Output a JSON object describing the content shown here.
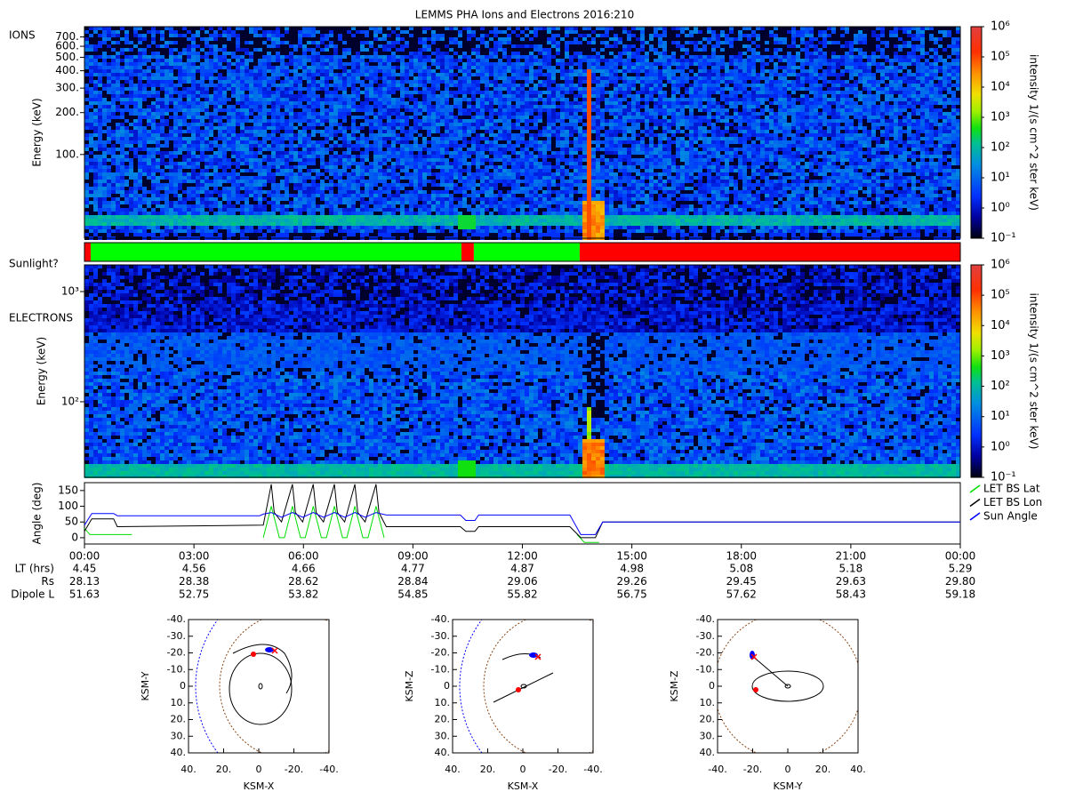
{
  "title": "LEMMS PHA Ions and Electrons  2016:210",
  "chart_data": [
    {
      "type": "spectrogram",
      "label": "IONS",
      "ylabel": "Energy (keV)",
      "xlim": [
        0,
        24
      ],
      "ylim": [
        25,
        830
      ],
      "log": true,
      "yticks": [
        {
          "value": 100,
          "label": "100."
        },
        {
          "value": 200,
          "label": "200."
        },
        {
          "value": 300,
          "label": "300."
        },
        {
          "value": 400,
          "label": "400."
        },
        {
          "value": 500,
          "label": "500."
        },
        {
          "value": 600,
          "label": "600."
        },
        {
          "value": 700,
          "label": "700."
        }
      ],
      "colorbar": {
        "lim": [
          0.1,
          1000000
        ],
        "label": "intensity 1/(s cm^2 ster keV)",
        "ticks": [
          {
            "value": 0.1,
            "label": "10⁻¹"
          },
          {
            "value": 1,
            "label": "10⁰"
          },
          {
            "value": 10,
            "label": "10¹"
          },
          {
            "value": 100,
            "label": "10²"
          },
          {
            "value": 1000,
            "label": "10³"
          },
          {
            "value": 10000,
            "label": "10⁴"
          },
          {
            "value": 100000,
            "label": "10⁵"
          },
          {
            "value": 1000000,
            "label": "10⁶"
          }
        ]
      }
    },
    {
      "type": "timeline",
      "label": "Sunlight?",
      "xlim": [
        0,
        24
      ],
      "segments": [
        {
          "start": 0,
          "end": 0.17,
          "color": "#ff0000"
        },
        {
          "start": 0.17,
          "end": 10.33,
          "color": "#00ff00"
        },
        {
          "start": 10.33,
          "end": 10.67,
          "color": "#ff0000"
        },
        {
          "start": 10.67,
          "end": 13.57,
          "color": "#00ff00"
        },
        {
          "start": 13.57,
          "end": 24,
          "color": "#ff0000"
        }
      ]
    },
    {
      "type": "spectrogram",
      "label": "ELECTRONS",
      "ylabel": "Energy (keV)",
      "xlim": [
        0,
        24
      ],
      "ylim": [
        20.6,
        1746
      ],
      "log": true,
      "yticks": [
        {
          "value": 100,
          "label": "10²"
        },
        {
          "value": 1000,
          "label": "10³"
        }
      ],
      "colorbar": {
        "lim": [
          0.1,
          1000000
        ],
        "label": "intensity 1/(s cm^2 ster keV)",
        "ticks": [
          {
            "value": 0.1,
            "label": "10⁻¹"
          },
          {
            "value": 1,
            "label": "10⁰"
          },
          {
            "value": 10,
            "label": "10¹"
          },
          {
            "value": 100,
            "label": "10²"
          },
          {
            "value": 1000,
            "label": "10³"
          },
          {
            "value": 10000,
            "label": "10⁴"
          },
          {
            "value": 100000,
            "label": "10⁵"
          },
          {
            "value": 1000000,
            "label": "10⁶"
          }
        ]
      }
    },
    {
      "type": "line",
      "ylabel": "Angle (deg)",
      "xlim": [
        0,
        24
      ],
      "ylim": [
        -20,
        175
      ],
      "yticks": [
        0,
        50,
        100,
        150
      ],
      "legend": "right",
      "xticks": [
        {
          "value": 0,
          "label": "00:00"
        },
        {
          "value": 3,
          "label": "03:00"
        },
        {
          "value": 6,
          "label": "06:00"
        },
        {
          "value": 9,
          "label": "09:00"
        },
        {
          "value": 12,
          "label": "12:00"
        },
        {
          "value": 15,
          "label": "15:00"
        },
        {
          "value": 18,
          "label": "18:00"
        },
        {
          "value": 21,
          "label": "21:00"
        },
        {
          "value": 24,
          "label": "00:00"
        }
      ],
      "series": [
        {
          "name": "LET BS Lat",
          "color": "#00dd00",
          "x": [
            0,
            0.15,
            1.3,
            1.31,
            4.9,
            5.12,
            5.34,
            5.48,
            5.7,
            5.92,
            6.05,
            6.27,
            6.49,
            6.63,
            6.85,
            7.07,
            7.19,
            7.41,
            7.63,
            7.77,
            7.99,
            8.21,
            8.22,
            13.5,
            13.7,
            14.1
          ],
          "values": [
            30,
            10,
            10,
            null,
            0,
            100,
            0,
            0,
            100,
            0,
            0,
            100,
            0,
            0,
            100,
            0,
            0,
            100,
            0,
            0,
            100,
            0,
            null,
            10,
            -15,
            -15
          ]
        },
        {
          "name": "LET BS Lon",
          "color": "#000000",
          "x": [
            0,
            0.2,
            0.8,
            0.9,
            4.9,
            5.12,
            5.2,
            5.4,
            5.7,
            5.78,
            5.98,
            6.27,
            6.35,
            6.55,
            6.85,
            6.93,
            7.13,
            7.41,
            7.49,
            7.69,
            7.99,
            8.07,
            8.27,
            10.3,
            10.45,
            10.7,
            10.8,
            13.3,
            13.6,
            14.0,
            14.2,
            24
          ],
          "values": [
            20,
            60,
            60,
            35,
            40,
            170,
            80,
            50,
            170,
            80,
            50,
            170,
            80,
            50,
            170,
            80,
            50,
            170,
            80,
            50,
            170,
            80,
            35,
            35,
            20,
            20,
            35,
            35,
            0,
            0,
            50,
            50
          ]
        },
        {
          "name": "Sun Angle",
          "color": "#0000ff",
          "x": [
            0,
            0.2,
            0.8,
            0.9,
            4.8,
            4.9,
            5.12,
            5.4,
            5.7,
            5.98,
            6.27,
            6.55,
            6.85,
            7.13,
            7.41,
            7.69,
            7.99,
            8.27,
            10.3,
            10.45,
            10.7,
            10.8,
            13.3,
            13.6,
            14.0,
            14.2,
            24
          ],
          "values": [
            40,
            77,
            77,
            70,
            70,
            75,
            80,
            65,
            80,
            65,
            80,
            65,
            80,
            65,
            80,
            65,
            80,
            72,
            72,
            55,
            55,
            72,
            72,
            10,
            10,
            50,
            50
          ]
        }
      ]
    },
    {
      "type": "orbit",
      "xlabel": "KSM-X",
      "ylabel": "KSM-Y",
      "xlim": [
        40,
        -40
      ],
      "ylim": [
        40,
        -40
      ],
      "xticks": [
        {
          "value": 40,
          "label": "40."
        },
        {
          "value": 20,
          "label": "20."
        },
        0,
        {
          "value": -20,
          "label": "-20."
        },
        {
          "value": -40,
          "label": "-40."
        }
      ],
      "yticks": [
        {
          "value": -40,
          "label": "-40."
        },
        {
          "value": -30,
          "label": "-30."
        },
        {
          "value": -20,
          "label": "-20."
        },
        {
          "value": -10,
          "label": "-10."
        },
        0,
        {
          "value": 10,
          "label": "10."
        },
        {
          "value": 20,
          "label": "20."
        },
        {
          "value": 30,
          "label": "30."
        },
        {
          "value": 40,
          "label": "40."
        }
      ]
    },
    {
      "type": "orbit",
      "xlabel": "KSM-X",
      "ylabel": "KSM-Z",
      "xlim": [
        40,
        -40
      ],
      "ylim": [
        40,
        -40
      ],
      "xticks": [
        {
          "value": 40,
          "label": "40."
        },
        {
          "value": 20,
          "label": "20."
        },
        0,
        {
          "value": -20,
          "label": "-20."
        },
        {
          "value": -40,
          "label": "-40."
        }
      ],
      "yticks": [
        {
          "value": -40,
          "label": "-40."
        },
        {
          "value": -30,
          "label": "-30."
        },
        {
          "value": -20,
          "label": "-20."
        },
        {
          "value": -10,
          "label": "-10."
        },
        0,
        {
          "value": 10,
          "label": "10."
        },
        {
          "value": 20,
          "label": "20."
        },
        {
          "value": 30,
          "label": "30."
        },
        {
          "value": 40,
          "label": "40."
        }
      ]
    },
    {
      "type": "orbit",
      "xlabel": "KSM-Y",
      "ylabel": "KSM-Z",
      "xlim": [
        -40,
        40
      ],
      "ylim": [
        40,
        -40
      ],
      "xticks": [
        {
          "value": -40,
          "label": "-40."
        },
        {
          "value": -20,
          "label": "-20."
        },
        0,
        {
          "value": 20,
          "label": "20."
        },
        {
          "value": 40,
          "label": "40."
        }
      ],
      "yticks": [
        {
          "value": -40,
          "label": "-40."
        },
        {
          "value": -30,
          "label": "-30."
        },
        {
          "value": -20,
          "label": "-20."
        },
        {
          "value": -10,
          "label": "-10."
        },
        0,
        {
          "value": 10,
          "label": "10."
        },
        {
          "value": 20,
          "label": "20."
        },
        {
          "value": 30,
          "label": "30."
        },
        {
          "value": 40,
          "label": "40."
        }
      ]
    }
  ],
  "ephemeris": {
    "rows": [
      {
        "label": "LT (hrs)",
        "values": [
          "4.45",
          "4.56",
          "4.66",
          "4.77",
          "4.87",
          "4.98",
          "5.08",
          "5.18",
          "5.29"
        ]
      },
      {
        "label": "Rs",
        "values": [
          "28.13",
          "28.38",
          "28.62",
          "28.84",
          "29.06",
          "29.26",
          "29.45",
          "29.63",
          "29.80"
        ]
      },
      {
        "label": "Dipole L",
        "values": [
          "51.63",
          "52.75",
          "53.82",
          "54.85",
          "55.82",
          "56.75",
          "57.62",
          "58.43",
          "59.18"
        ]
      }
    ]
  }
}
